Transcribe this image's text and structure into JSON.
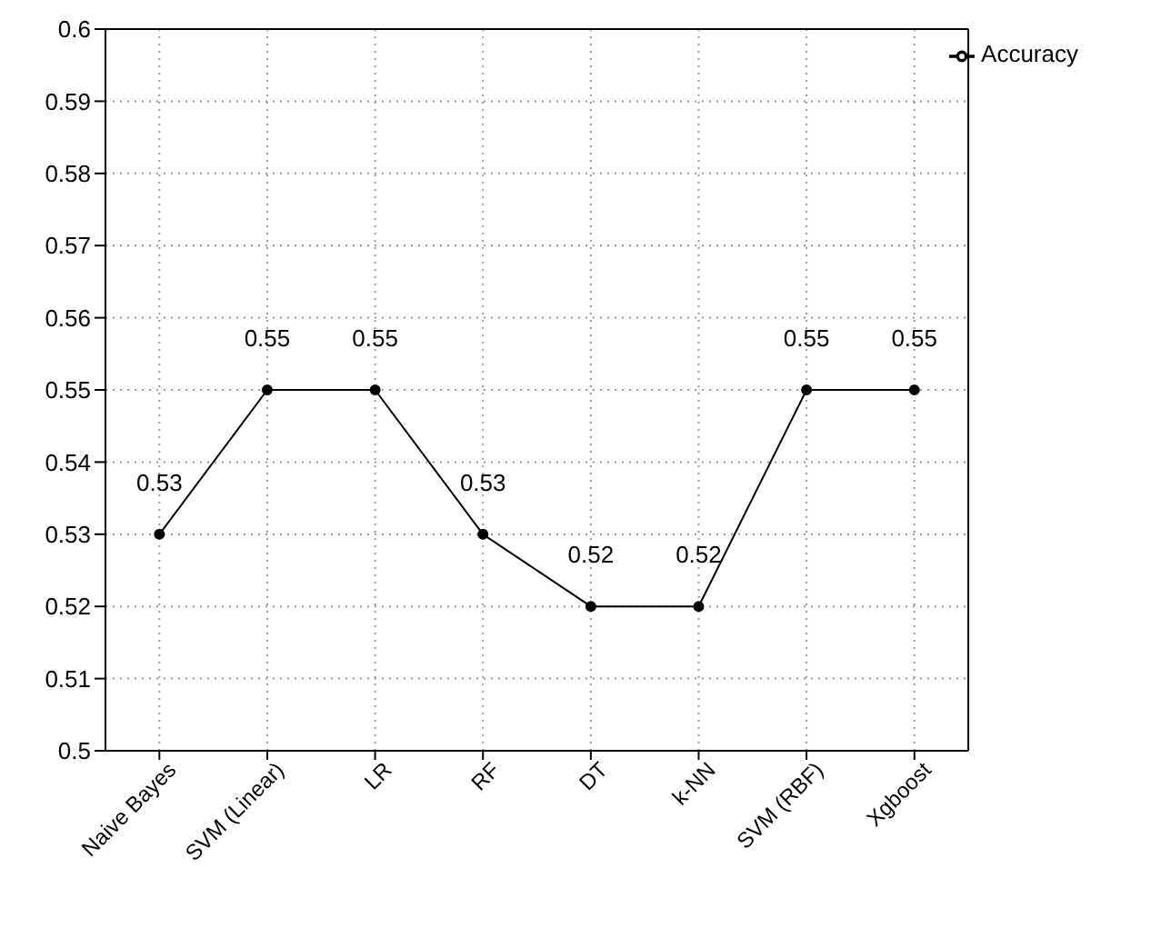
{
  "chart_data": {
    "type": "line",
    "categories": [
      "Naive Bayes",
      "SVM (Linear)",
      "LR",
      "RF",
      "DT",
      "k-NN",
      "SVM (RBF)",
      "Xgboost"
    ],
    "series": [
      {
        "name": "Accuracy",
        "color": "#000000",
        "values": [
          0.53,
          0.55,
          0.55,
          0.53,
          0.52,
          0.52,
          0.55,
          0.55
        ]
      }
    ],
    "ylim": [
      0.5,
      0.6
    ],
    "yticks": [
      0.5,
      0.51,
      0.52,
      0.53,
      0.54,
      0.55,
      0.56,
      0.57,
      0.58,
      0.59,
      0.6
    ],
    "grid": true,
    "legend": "top right",
    "marker": "circle",
    "line_style": "solid",
    "data_labels": true
  }
}
